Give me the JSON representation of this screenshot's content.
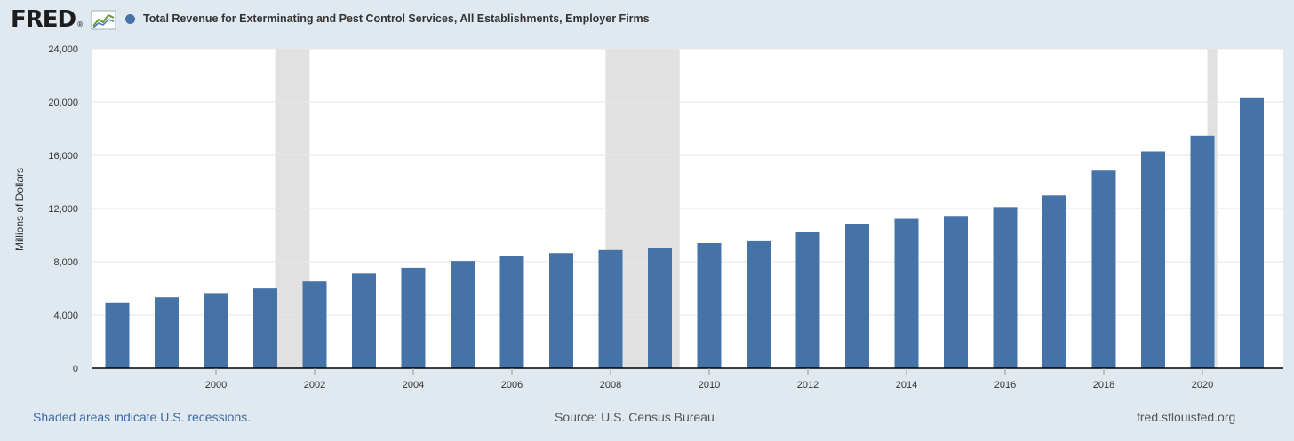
{
  "header": {
    "logo_text": "FRED",
    "logo_reg": "®",
    "title": "Total Revenue for Exterminating and Pest Control Services, All Establishments, Employer Firms"
  },
  "footer": {
    "recessions_note": "Shaded areas indicate U.S. recessions.",
    "source": "Source: U.S. Census Bureau",
    "site": "fred.stlouisfed.org"
  },
  "colors": {
    "background": "#e1e9f0",
    "plot_background": "#ffffff",
    "bar": "#4572a7",
    "recession": "#e1e1e1",
    "grid": "#e6e6e6"
  },
  "chart_data": {
    "type": "bar",
    "title": "Total Revenue for Exterminating and Pest Control Services, All Establishments, Employer Firms",
    "xlabel": "",
    "ylabel": "Millions of Dollars",
    "ylim": [
      0,
      24000
    ],
    "yticks": [
      0,
      4000,
      8000,
      12000,
      16000,
      20000,
      24000
    ],
    "ytick_labels": [
      "0",
      "4,000",
      "8,000",
      "12,000",
      "16,000",
      "20,000",
      "24,000"
    ],
    "xticks": [
      2000,
      2002,
      2004,
      2006,
      2008,
      2010,
      2012,
      2014,
      2016,
      2018,
      2020
    ],
    "xtick_labels": [
      "2000",
      "2002",
      "2004",
      "2006",
      "2008",
      "2010",
      "2012",
      "2014",
      "2016",
      "2018",
      "2020"
    ],
    "grid": true,
    "legend": "none",
    "categories": [
      1998,
      1999,
      2000,
      2001,
      2002,
      2003,
      2004,
      2005,
      2006,
      2007,
      2008,
      2009,
      2010,
      2011,
      2012,
      2013,
      2014,
      2015,
      2016,
      2017,
      2018,
      2019,
      2020,
      2021
    ],
    "values": [
      4950,
      5320,
      5640,
      5990,
      6520,
      7110,
      7540,
      8060,
      8420,
      8650,
      8880,
      9020,
      9400,
      9540,
      10260,
      10800,
      11230,
      11450,
      12110,
      12980,
      14850,
      16300,
      17480,
      20350
    ],
    "recessions": [
      {
        "start": 2001.2,
        "end": 2001.9
      },
      {
        "start": 2007.9,
        "end": 2009.4
      },
      {
        "start": 2020.1,
        "end": 2020.3
      }
    ]
  }
}
